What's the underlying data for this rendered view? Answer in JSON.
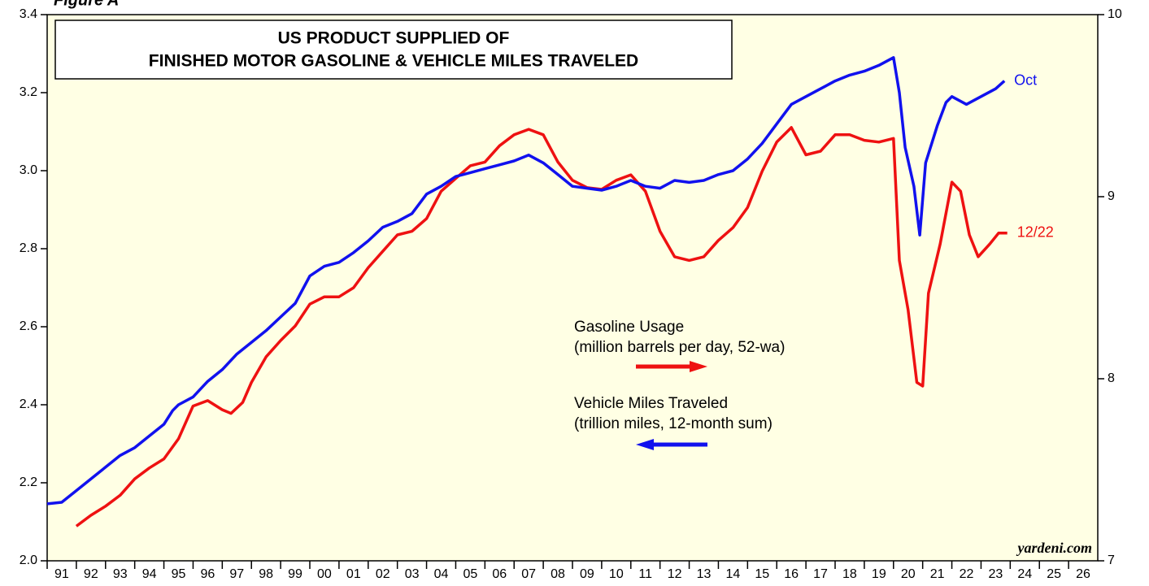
{
  "chart_data": {
    "type": "line",
    "figure_label": "Figure A",
    "title_lines": [
      "US PRODUCT SUPPLIED OF",
      "FINISHED MOTOR GASOLINE & VEHICLE MILES TRAVELED"
    ],
    "source": "yardeni.com",
    "xlim": [
      1991,
      2027
    ],
    "xticks": [
      {
        "value": 1991,
        "label": "91"
      },
      {
        "value": 1992,
        "label": "92"
      },
      {
        "value": 1993,
        "label": "93"
      },
      {
        "value": 1994,
        "label": "94"
      },
      {
        "value": 1995,
        "label": "95"
      },
      {
        "value": 1996,
        "label": "96"
      },
      {
        "value": 1997,
        "label": "97"
      },
      {
        "value": 1998,
        "label": "98"
      },
      {
        "value": 1999,
        "label": "99"
      },
      {
        "value": 2000,
        "label": "00"
      },
      {
        "value": 2001,
        "label": "01"
      },
      {
        "value": 2002,
        "label": "02"
      },
      {
        "value": 2003,
        "label": "03"
      },
      {
        "value": 2004,
        "label": "04"
      },
      {
        "value": 2005,
        "label": "05"
      },
      {
        "value": 2006,
        "label": "06"
      },
      {
        "value": 2007,
        "label": "07"
      },
      {
        "value": 2008,
        "label": "08"
      },
      {
        "value": 2009,
        "label": "09"
      },
      {
        "value": 2010,
        "label": "10"
      },
      {
        "value": 2011,
        "label": "11"
      },
      {
        "value": 2012,
        "label": "12"
      },
      {
        "value": 2013,
        "label": "13"
      },
      {
        "value": 2014,
        "label": "14"
      },
      {
        "value": 2015,
        "label": "15"
      },
      {
        "value": 2016,
        "label": "16"
      },
      {
        "value": 2017,
        "label": "17"
      },
      {
        "value": 2018,
        "label": "18"
      },
      {
        "value": 2019,
        "label": "19"
      },
      {
        "value": 2020,
        "label": "20"
      },
      {
        "value": 2021,
        "label": "21"
      },
      {
        "value": 2022,
        "label": "22"
      },
      {
        "value": 2023,
        "label": "23"
      },
      {
        "value": 2024,
        "label": "24"
      },
      {
        "value": 2025,
        "label": "25"
      },
      {
        "value": 2026,
        "label": "26"
      }
    ],
    "ylim": [
      2.0,
      3.4
    ],
    "yticks": [
      {
        "value": 2.0,
        "label": "2.0"
      },
      2.2,
      2.4,
      2.6,
      2.8,
      {
        "value": 3.0,
        "label": "3.0"
      },
      3.2,
      3.4
    ],
    "y2lim": [
      7,
      10
    ],
    "y2ticks": [
      7,
      8,
      9,
      10
    ],
    "legend_position": "center",
    "series": [
      {
        "name": "Gasoline Usage",
        "unit_label": "(million barrels per day, 52-wa)",
        "end_label": "12/22",
        "color": "#ee1111",
        "axis": "y2",
        "x": [
          1992.0,
          1992.5,
          1993.0,
          1993.5,
          1994.0,
          1994.5,
          1995.0,
          1995.5,
          1996.0,
          1996.5,
          1997.0,
          1997.3,
          1997.7,
          1998.0,
          1998.5,
          1999.0,
          1999.5,
          2000.0,
          2000.5,
          2001.0,
          2001.5,
          2002.0,
          2002.5,
          2003.0,
          2003.5,
          2004.0,
          2004.5,
          2005.0,
          2005.5,
          2006.0,
          2006.5,
          2007.0,
          2007.5,
          2008.0,
          2008.5,
          2009.0,
          2009.5,
          2010.0,
          2010.5,
          2011.0,
          2011.5,
          2012.0,
          2012.5,
          2013.0,
          2013.5,
          2014.0,
          2014.5,
          2015.0,
          2015.5,
          2016.0,
          2016.5,
          2017.0,
          2017.5,
          2018.0,
          2018.5,
          2019.0,
          2019.5,
          2020.0,
          2020.2,
          2020.5,
          2020.8,
          2021.0,
          2021.2,
          2021.6,
          2022.0,
          2022.3,
          2022.6,
          2022.9,
          2023.3,
          2023.6,
          2023.9
        ],
        "values": [
          7.19,
          7.25,
          7.3,
          7.36,
          7.45,
          7.51,
          7.56,
          7.67,
          7.85,
          7.88,
          7.83,
          7.81,
          7.87,
          7.98,
          8.12,
          8.21,
          8.29,
          8.41,
          8.45,
          8.45,
          8.5,
          8.61,
          8.7,
          8.79,
          8.81,
          8.88,
          9.03,
          9.1,
          9.17,
          9.19,
          9.28,
          9.34,
          9.37,
          9.34,
          9.19,
          9.09,
          9.05,
          9.04,
          9.09,
          9.12,
          9.03,
          8.81,
          8.67,
          8.65,
          8.67,
          8.76,
          8.83,
          8.94,
          9.14,
          9.3,
          9.38,
          9.23,
          9.25,
          9.34,
          9.34,
          9.31,
          9.3,
          9.32,
          8.65,
          8.38,
          7.98,
          7.96,
          8.47,
          8.74,
          9.08,
          9.03,
          8.79,
          8.67,
          8.74,
          8.8,
          8.8
        ]
      },
      {
        "name": "Vehicle Miles Traveled",
        "unit_label": "(trillion miles, 12-month sum)",
        "end_label": "Oct",
        "color": "#1111ee",
        "axis": "y",
        "x": [
          1991.0,
          1991.5,
          1992.0,
          1992.5,
          1993.0,
          1993.5,
          1994.0,
          1994.5,
          1995.0,
          1995.3,
          1995.5,
          1996.0,
          1996.5,
          1997.0,
          1997.5,
          1998.0,
          1998.5,
          1999.0,
          1999.5,
          2000.0,
          2000.5,
          2001.0,
          2001.5,
          2002.0,
          2002.5,
          2003.0,
          2003.5,
          2004.0,
          2004.5,
          2005.0,
          2005.5,
          2006.0,
          2006.5,
          2007.0,
          2007.5,
          2008.0,
          2008.5,
          2009.0,
          2009.5,
          2010.0,
          2010.5,
          2011.0,
          2011.5,
          2012.0,
          2012.5,
          2013.0,
          2013.5,
          2014.0,
          2014.5,
          2015.0,
          2015.5,
          2016.0,
          2016.5,
          2017.0,
          2017.5,
          2018.0,
          2018.5,
          2019.0,
          2019.5,
          2020.0,
          2020.2,
          2020.4,
          2020.7,
          2020.9,
          2021.1,
          2021.5,
          2021.8,
          2022.0,
          2022.5,
          2023.0,
          2023.5,
          2023.8
        ],
        "values": [
          2.146,
          2.15,
          2.18,
          2.21,
          2.24,
          2.27,
          2.29,
          2.32,
          2.35,
          2.385,
          2.4,
          2.42,
          2.46,
          2.49,
          2.53,
          2.56,
          2.59,
          2.625,
          2.66,
          2.73,
          2.755,
          2.765,
          2.79,
          2.82,
          2.855,
          2.87,
          2.89,
          2.94,
          2.96,
          2.985,
          2.995,
          3.005,
          3.015,
          3.025,
          3.04,
          3.02,
          2.99,
          2.96,
          2.955,
          2.95,
          2.96,
          2.975,
          2.96,
          2.955,
          2.975,
          2.97,
          2.975,
          2.99,
          3.0,
          3.03,
          3.07,
          3.12,
          3.17,
          3.19,
          3.21,
          3.23,
          3.245,
          3.255,
          3.27,
          3.29,
          3.2,
          3.06,
          2.96,
          2.835,
          3.02,
          3.115,
          3.175,
          3.19,
          3.17,
          3.19,
          3.21,
          3.23
        ]
      }
    ]
  }
}
